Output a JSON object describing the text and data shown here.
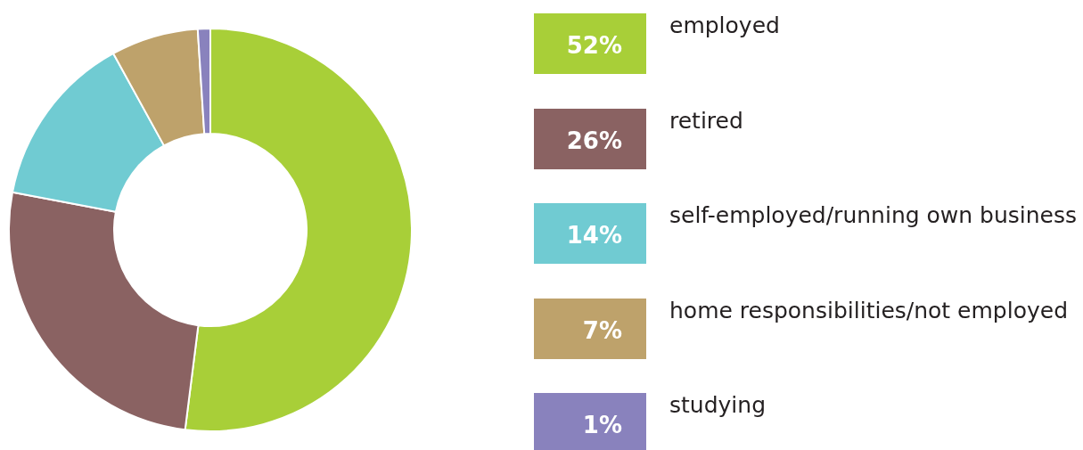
{
  "chart_data": {
    "type": "donut",
    "categories": [
      "employed",
      "retired",
      "self-employed/running own business",
      "home responsibilities/not employed",
      "studying"
    ],
    "values": [
      52,
      26,
      14,
      7,
      1
    ],
    "annotations": [
      "52%",
      "26%",
      "14%",
      "7%",
      "1%"
    ],
    "colors": [
      "#a8cf38",
      "#8a6262",
      "#70cbd2",
      "#bea26b",
      "#8982bd"
    ],
    "legend": "right"
  }
}
